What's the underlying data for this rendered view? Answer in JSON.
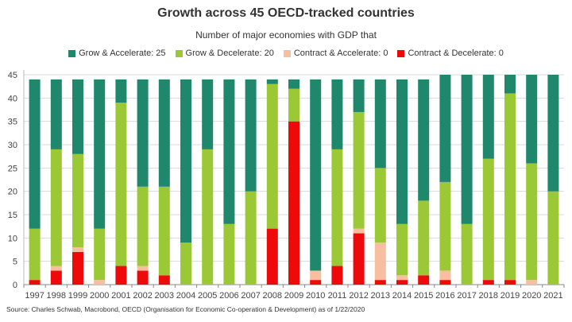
{
  "chart_data": {
    "type": "bar",
    "stacked": true,
    "title": "Growth across 45 OECD-tracked countries",
    "subtitle": "Number of major economies with GDP that",
    "xlabel": "",
    "ylabel": "",
    "ylim": [
      0,
      45
    ],
    "yticks": [
      0,
      5,
      10,
      15,
      20,
      25,
      30,
      35,
      40,
      45
    ],
    "grid": true,
    "legend_placement": "top",
    "categories": [
      "1997",
      "1998",
      "1999",
      "2000",
      "2001",
      "2002",
      "2003",
      "2004",
      "2005",
      "2006",
      "2007",
      "2008",
      "2009",
      "2010",
      "2011",
      "2012",
      "2013",
      "2014",
      "2015",
      "2016",
      "2017",
      "2018",
      "2019",
      "2020",
      "2021"
    ],
    "series": [
      {
        "name": "Contract & Decelerate",
        "legend_label": "Contract & Decelerate: 0",
        "color": "#ee0a0a",
        "values": [
          1,
          3,
          7,
          0,
          4,
          3,
          2,
          0,
          0,
          0,
          0,
          12,
          35,
          1,
          4,
          11,
          1,
          1,
          2,
          1,
          0,
          1,
          1,
          0,
          0
        ]
      },
      {
        "name": "Contract & Accelerate",
        "legend_label": "Contract & Accelerate: 0",
        "color": "#f7bfa0",
        "values": [
          0,
          1,
          1,
          1,
          0,
          1,
          0,
          0,
          0,
          0,
          0,
          0,
          0,
          2,
          0,
          1,
          8,
          1,
          0,
          2,
          0,
          0,
          0,
          1,
          0
        ]
      },
      {
        "name": "Grow & Decelerate",
        "legend_label": "Grow & Decelerate: 20",
        "color": "#9bc935",
        "values": [
          11,
          25,
          20,
          11,
          35,
          17,
          19,
          9,
          29,
          13,
          20,
          31,
          7,
          0,
          25,
          25,
          16,
          11,
          16,
          19,
          13,
          26,
          40,
          25,
          20
        ]
      },
      {
        "name": "Grow & Accelerate",
        "legend_label": "Grow & Accelerate: 25",
        "color": "#1f876c",
        "values": [
          32,
          15,
          16,
          32,
          5,
          23,
          23,
          35,
          15,
          31,
          24,
          1,
          2,
          41,
          15,
          7,
          19,
          31,
          26,
          23,
          32,
          18,
          4,
          19,
          25
        ]
      }
    ],
    "legend_order": [
      3,
      2,
      1,
      0
    ],
    "source": "Source: Charles Schwab, Macrobond, OECD (Organisation for Economic Co-operation & Development) as of 1/22/2020"
  }
}
